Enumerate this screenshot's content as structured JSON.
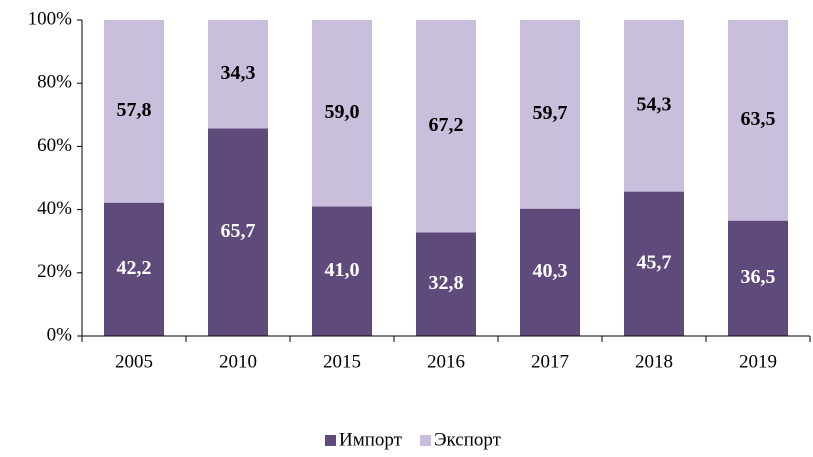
{
  "chart_data": {
    "type": "stacked_bar_100",
    "categories": [
      "2005",
      "2010",
      "2015",
      "2016",
      "2017",
      "2018",
      "2019"
    ],
    "series": [
      {
        "name": "Импорт",
        "color": "#5f4b7b",
        "values": [
          42.2,
          65.7,
          41.0,
          32.8,
          40.3,
          45.7,
          36.5
        ],
        "value_labels": [
          "42,2",
          "65,7",
          "41,0",
          "32,8",
          "40,3",
          "45,7",
          "36,5"
        ]
      },
      {
        "name": "Экспорт",
        "color": "#c9bfdc",
        "values": [
          57.8,
          34.3,
          59.0,
          67.2,
          59.7,
          54.3,
          63.5
        ],
        "value_labels": [
          "57,8",
          "34,3",
          "59,0",
          "67,2",
          "59,7",
          "54,3",
          "63,5"
        ]
      }
    ],
    "ylim": [
      0,
      100
    ],
    "yticks": [
      {
        "value": 0,
        "label": "0%"
      },
      {
        "value": 20,
        "label": "20%"
      },
      {
        "value": 40,
        "label": "40%"
      },
      {
        "value": 60,
        "label": "60%"
      },
      {
        "value": 80,
        "label": "80%"
      },
      {
        "value": 100,
        "label": "100%"
      }
    ],
    "legend": "bottom"
  }
}
